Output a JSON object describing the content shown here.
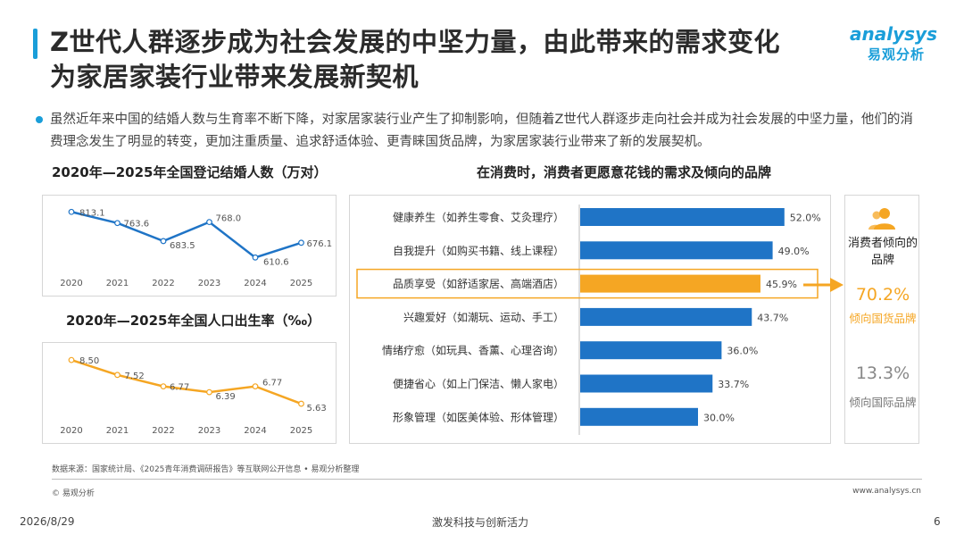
{
  "header": {
    "title_line1": "Z世代人群逐步成为社会发展的中坚力量，由此带来的需求变化",
    "title_line2": "为家居家装行业带来发展新契机",
    "logo_en": "analysys",
    "logo_cn": "易观分析",
    "accent_color": "#1a9ed9"
  },
  "bullet": {
    "text": "虽然近年来中国的结婚人数与生育率不断下降，对家居家装行业产生了抑制影响，但随着Z世代人群逐步走向社会并成为社会发展的中坚力量，他们的消费理念发生了明显的转变，更加注重质量、追求舒适体验、更青睐国货品牌，为家居家装行业带来了新的发展契机。"
  },
  "chart_data": [
    {
      "type": "line",
      "title": "2020年—2025年全国登记结婚人数（万对）",
      "x": [
        "2020",
        "2021",
        "2022",
        "2023",
        "2024",
        "2025"
      ],
      "values": [
        813.1,
        763.6,
        683.5,
        768.0,
        610.6,
        676.1
      ],
      "labels": [
        "813.1",
        "763.6",
        "683.5",
        "768.0",
        "610.6",
        "676.1"
      ],
      "color": "#1f74c6"
    },
    {
      "type": "line",
      "title": "2020年—2025年全国人口出生率（‰）",
      "x": [
        "2020",
        "2021",
        "2022",
        "2023",
        "2024",
        "2025"
      ],
      "values": [
        8.5,
        7.52,
        6.77,
        6.39,
        6.77,
        5.63
      ],
      "labels": [
        "8.50",
        "7.52",
        "6.77",
        "6.39",
        "6.77",
        "5.63"
      ],
      "color": "#f5a623"
    },
    {
      "type": "bar",
      "orientation": "horizontal",
      "title": "在消费时，消费者更愿意花钱的需求及倾向的品牌",
      "categories": [
        "健康养生（如养生零食、艾灸理疗）",
        "自我提升（如购买书籍、线上课程）",
        "品质享受（如舒适家居、高端酒店）",
        "兴趣爱好（如潮玩、运动、手工）",
        "情绪疗愈（如玩具、香薰、心理咨询）",
        "便捷省心（如上门保洁、懒人家电）",
        "形象管理（如医美体验、形体管理）"
      ],
      "values": [
        52.0,
        49.0,
        45.9,
        43.7,
        36.0,
        33.7,
        30.0
      ],
      "labels": [
        "52.0%",
        "49.0%",
        "45.9%",
        "43.7%",
        "36.0%",
        "33.7%",
        "30.0%"
      ],
      "highlight_index": 2,
      "bar_color": "#1f74c6",
      "highlight_color": "#f5a623"
    }
  ],
  "side_panel": {
    "title": "消费者倾向的品牌",
    "domestic_pct": "70.2%",
    "domestic_label": "倾向国货品牌",
    "foreign_pct": "13.3%",
    "foreign_label": "倾向国际品牌"
  },
  "footer": {
    "source": "数据来源：国家统计局、《2025青年消费调研报告》等互联网公开信息 • 易观分析整理",
    "copyright": "© 易观分析",
    "website": "www.analysys.cn",
    "date": "2026/8/29",
    "center": "激发科技与创新活力",
    "page": "6"
  }
}
